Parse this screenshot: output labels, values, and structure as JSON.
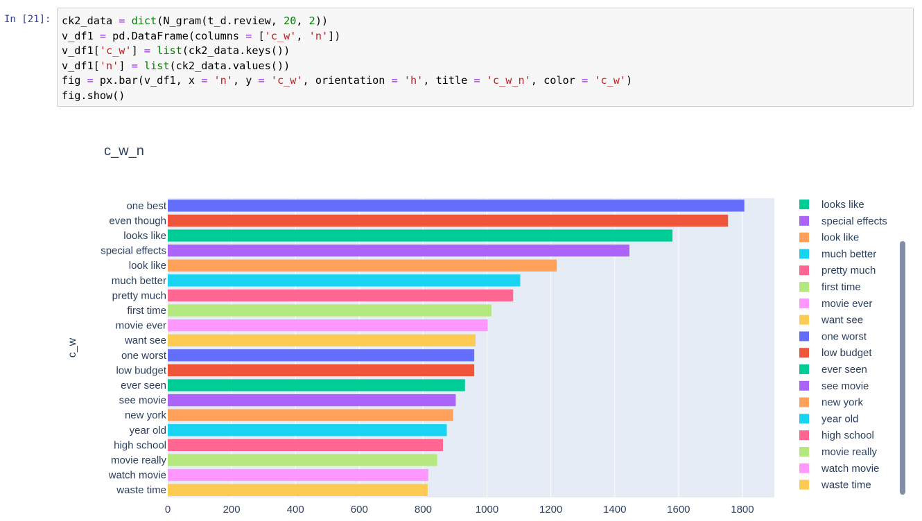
{
  "cell": {
    "prompt": "In [21]:",
    "code_lines": [
      [
        {
          "t": "ck2_data ",
          "c": "id"
        },
        {
          "t": "=",
          "c": "op"
        },
        {
          "t": " ",
          "c": "id"
        },
        {
          "t": "dict",
          "c": "bi"
        },
        {
          "t": "(N_gram(t_d.review, ",
          "c": "id"
        },
        {
          "t": "20",
          "c": "num"
        },
        {
          "t": ", ",
          "c": "id"
        },
        {
          "t": "2",
          "c": "num"
        },
        {
          "t": "))",
          "c": "id"
        }
      ],
      [
        {
          "t": "v_df1 ",
          "c": "id"
        },
        {
          "t": "=",
          "c": "op"
        },
        {
          "t": " pd.DataFrame(columns ",
          "c": "id"
        },
        {
          "t": "=",
          "c": "op"
        },
        {
          "t": " [",
          "c": "id"
        },
        {
          "t": "'c_w'",
          "c": "str"
        },
        {
          "t": ", ",
          "c": "id"
        },
        {
          "t": "'n'",
          "c": "str"
        },
        {
          "t": "])",
          "c": "id"
        }
      ],
      [
        {
          "t": "v_df1[",
          "c": "id"
        },
        {
          "t": "'c_w'",
          "c": "str"
        },
        {
          "t": "] ",
          "c": "id"
        },
        {
          "t": "=",
          "c": "op"
        },
        {
          "t": " ",
          "c": "id"
        },
        {
          "t": "list",
          "c": "bi"
        },
        {
          "t": "(ck2_data.keys())",
          "c": "id"
        }
      ],
      [
        {
          "t": "v_df1[",
          "c": "id"
        },
        {
          "t": "'n'",
          "c": "str"
        },
        {
          "t": "] ",
          "c": "id"
        },
        {
          "t": "=",
          "c": "op"
        },
        {
          "t": " ",
          "c": "id"
        },
        {
          "t": "list",
          "c": "bi"
        },
        {
          "t": "(ck2_data.values())",
          "c": "id"
        }
      ],
      [
        {
          "t": "fig ",
          "c": "id"
        },
        {
          "t": "=",
          "c": "op"
        },
        {
          "t": " px.bar(v_df1, x ",
          "c": "id"
        },
        {
          "t": "=",
          "c": "op"
        },
        {
          "t": " ",
          "c": "id"
        },
        {
          "t": "'n'",
          "c": "str"
        },
        {
          "t": ", y ",
          "c": "id"
        },
        {
          "t": "=",
          "c": "op"
        },
        {
          "t": " ",
          "c": "id"
        },
        {
          "t": "'c_w'",
          "c": "str"
        },
        {
          "t": ", orientation ",
          "c": "id"
        },
        {
          "t": "=",
          "c": "op"
        },
        {
          "t": " ",
          "c": "id"
        },
        {
          "t": "'h'",
          "c": "str"
        },
        {
          "t": ", title ",
          "c": "id"
        },
        {
          "t": "=",
          "c": "op"
        },
        {
          "t": " ",
          "c": "id"
        },
        {
          "t": "'c_w_n'",
          "c": "str"
        },
        {
          "t": ", color ",
          "c": "id"
        },
        {
          "t": "=",
          "c": "op"
        },
        {
          "t": " ",
          "c": "id"
        },
        {
          "t": "'c_w'",
          "c": "str"
        },
        {
          "t": ")",
          "c": "id"
        }
      ],
      [
        {
          "t": "fig.show()",
          "c": "id"
        }
      ]
    ]
  },
  "chart_data": {
    "type": "bar",
    "orientation": "h",
    "title": "c_w_n",
    "xlabel": "",
    "ylabel": "c_w",
    "xlim": [
      0,
      1900
    ],
    "xticks": [
      0,
      200,
      400,
      600,
      800,
      1000,
      1200,
      1400,
      1600,
      1800
    ],
    "grid": true,
    "legend_position": "right",
    "plot_bg": "#e5ecf6",
    "categories": [
      "one best",
      "even though",
      "looks like",
      "special effects",
      "look like",
      "much better",
      "pretty much",
      "first time",
      "movie ever",
      "want see",
      "one worst",
      "low budget",
      "ever seen",
      "see movie",
      "new york",
      "year old",
      "high school",
      "movie really",
      "watch movie",
      "waste time"
    ],
    "values": [
      1806,
      1755,
      1581,
      1446,
      1218,
      1104,
      1082,
      1014,
      1002,
      964,
      960,
      960,
      931,
      902,
      894,
      874,
      862,
      844,
      816,
      814
    ],
    "colors": [
      "#636efa",
      "#ef553b",
      "#00cc96",
      "#ab63fa",
      "#ffa15a",
      "#19d3f3",
      "#ff6692",
      "#b6e880",
      "#ff97ff",
      "#fecb52",
      "#636efa",
      "#ef553b",
      "#00cc96",
      "#ab63fa",
      "#ffa15a",
      "#19d3f3",
      "#ff6692",
      "#b6e880",
      "#ff97ff",
      "#fecb52"
    ],
    "legend": [
      {
        "name": "looks like",
        "color": "#00cc96"
      },
      {
        "name": "special effects",
        "color": "#ab63fa"
      },
      {
        "name": "look like",
        "color": "#ffa15a"
      },
      {
        "name": "much better",
        "color": "#19d3f3"
      },
      {
        "name": "pretty much",
        "color": "#ff6692"
      },
      {
        "name": "first time",
        "color": "#b6e880"
      },
      {
        "name": "movie ever",
        "color": "#ff97ff"
      },
      {
        "name": "want see",
        "color": "#fecb52"
      },
      {
        "name": "one worst",
        "color": "#636efa"
      },
      {
        "name": "low budget",
        "color": "#ef553b"
      },
      {
        "name": "ever seen",
        "color": "#00cc96"
      },
      {
        "name": "see movie",
        "color": "#ab63fa"
      },
      {
        "name": "new york",
        "color": "#ffa15a"
      },
      {
        "name": "year old",
        "color": "#19d3f3"
      },
      {
        "name": "high school",
        "color": "#ff6692"
      },
      {
        "name": "movie really",
        "color": "#b6e880"
      },
      {
        "name": "watch movie",
        "color": "#ff97ff"
      },
      {
        "name": "waste time",
        "color": "#fecb52"
      }
    ]
  }
}
